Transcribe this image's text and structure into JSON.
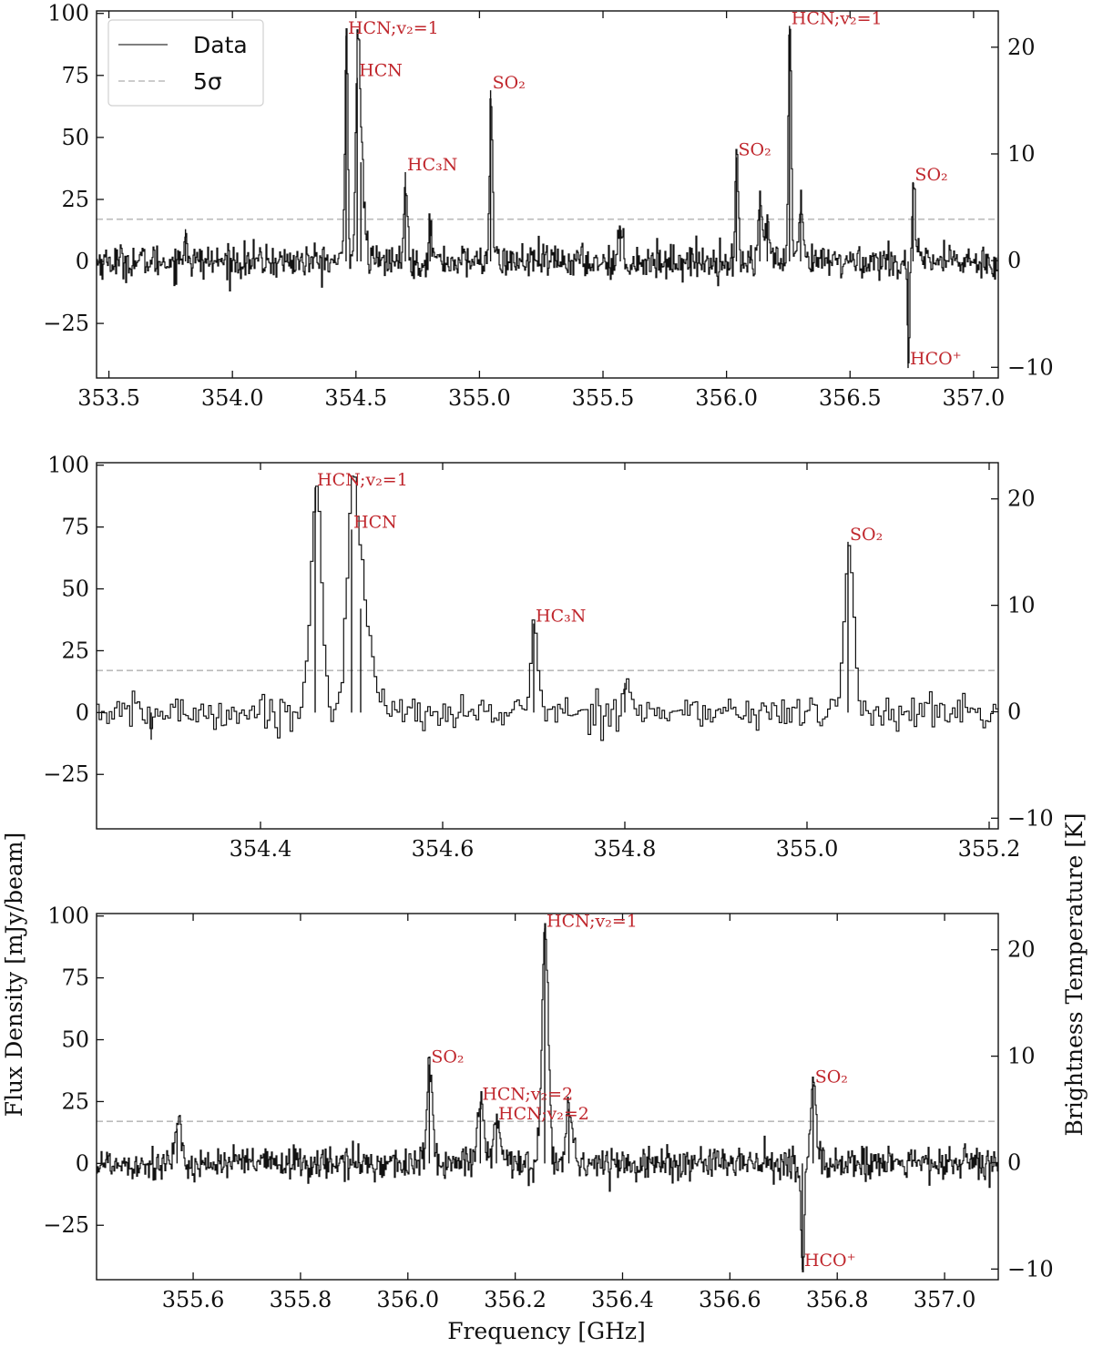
{
  "colors": {
    "data_line": "#111111",
    "threshold_line": "#bbbbbb",
    "annotation": "#c0272d",
    "axis": "#111111"
  },
  "legend": {
    "items": [
      {
        "label": "Data",
        "style": "solid",
        "color": "#555555"
      },
      {
        "label": "5σ",
        "style": "dashed",
        "color": "#bbbbbb"
      }
    ],
    "location": "upper-left of top panel"
  },
  "axes_text": {
    "xlabel": "Frequency [GHz]",
    "ylabel_left": "Flux Density [mJy/beam]",
    "ylabel_right": "Brightness Temperature [K]"
  },
  "chart_data": [
    {
      "type": "line",
      "panel": "top",
      "xlim": [
        353.45,
        357.1
      ],
      "ylim": [
        -47,
        101
      ],
      "ylim_right": [
        -11,
        23.4
      ],
      "xticks": [
        "353.5",
        "354.0",
        "354.5",
        "355.0",
        "355.5",
        "356.0",
        "356.5",
        "357.0"
      ],
      "yticks_left": [
        "100",
        "75",
        "50",
        "25",
        "0",
        "−25"
      ],
      "yticks_right": [
        "20",
        "10",
        "0",
        "−10"
      ],
      "threshold_5sigma": 17,
      "rms_noise": 3.4,
      "show_legend": true,
      "peaks": [
        {
          "x": 353.81,
          "y": 13,
          "w": 0.006
        },
        {
          "x": 354.46,
          "y": 91,
          "w": 0.006
        },
        {
          "x": 354.505,
          "y": 74,
          "w": 0.008
        },
        {
          "x": 354.52,
          "y": 40,
          "w": 0.012
        },
        {
          "x": 354.7,
          "y": 36,
          "w": 0.006
        },
        {
          "x": 354.8,
          "y": 13,
          "w": 0.008
        },
        {
          "x": 355.045,
          "y": 69,
          "w": 0.006
        },
        {
          "x": 355.57,
          "y": 14,
          "w": 0.008
        },
        {
          "x": 356.04,
          "y": 42,
          "w": 0.006
        },
        {
          "x": 356.135,
          "y": 26,
          "w": 0.008
        },
        {
          "x": 356.165,
          "y": 17,
          "w": 0.008
        },
        {
          "x": 356.255,
          "y": 95,
          "w": 0.006
        },
        {
          "x": 356.3,
          "y": 20,
          "w": 0.008
        },
        {
          "x": 356.735,
          "y": -43,
          "w": 0.004
        },
        {
          "x": 356.755,
          "y": 32,
          "w": 0.006
        }
      ],
      "annotations": [
        {
          "text": "HCN;v₂=1",
          "x": 354.46,
          "y": 91
        },
        {
          "text": "HCN",
          "x": 354.505,
          "y": 74
        },
        {
          "text": "HC₃N",
          "x": 354.7,
          "y": 36
        },
        {
          "text": "SO₂",
          "x": 355.045,
          "y": 69
        },
        {
          "text": "SO₂",
          "x": 356.04,
          "y": 42
        },
        {
          "text": "HCN;v₂=1",
          "x": 356.255,
          "y": 95
        },
        {
          "text": "SO₂",
          "x": 356.755,
          "y": 32
        },
        {
          "text": "HCO⁺",
          "x": 356.735,
          "y": -43
        }
      ]
    },
    {
      "type": "line",
      "panel": "middle",
      "xlim": [
        354.22,
        355.21
      ],
      "ylim": [
        -47,
        101
      ],
      "ylim_right": [
        -11,
        23.4
      ],
      "xticks": [
        "354.4",
        "354.6",
        "354.8",
        "355.0",
        "355.2"
      ],
      "yticks_left": [
        "100",
        "75",
        "50",
        "25",
        "0",
        "−25"
      ],
      "yticks_right": [
        "20",
        "10",
        "0",
        "−10"
      ],
      "threshold_5sigma": 17,
      "rms_noise": 3.4,
      "show_legend": false,
      "peaks": [
        {
          "x": 354.28,
          "y": -11,
          "w": 0.001
        },
        {
          "x": 354.46,
          "y": 91,
          "w": 0.006
        },
        {
          "x": 354.5,
          "y": 74,
          "w": 0.006
        },
        {
          "x": 354.51,
          "y": 42,
          "w": 0.01
        },
        {
          "x": 354.7,
          "y": 36,
          "w": 0.004
        },
        {
          "x": 354.8,
          "y": 12,
          "w": 0.006
        },
        {
          "x": 355.045,
          "y": 69,
          "w": 0.005
        }
      ],
      "annotations": [
        {
          "text": "HCN;v₂=1",
          "x": 354.46,
          "y": 91
        },
        {
          "text": "HCN",
          "x": 354.5,
          "y": 74
        },
        {
          "text": "HC₃N",
          "x": 354.7,
          "y": 36
        },
        {
          "text": "SO₂",
          "x": 355.045,
          "y": 69
        }
      ]
    },
    {
      "type": "line",
      "panel": "bottom",
      "xlim": [
        355.42,
        357.1
      ],
      "ylim": [
        -47,
        101
      ],
      "ylim_right": [
        -11,
        23.4
      ],
      "xticks": [
        "355.6",
        "355.8",
        "356.0",
        "356.2",
        "356.4",
        "356.6",
        "356.8",
        "357.0"
      ],
      "yticks_left": [
        "100",
        "75",
        "50",
        "25",
        "0",
        "−25"
      ],
      "yticks_right": [
        "20",
        "10",
        "0",
        "−10"
      ],
      "threshold_5sigma": 17,
      "rms_noise": 3.4,
      "show_legend": false,
      "peaks": [
        {
          "x": 355.57,
          "y": 14,
          "w": 0.006
        },
        {
          "x": 356.04,
          "y": 40,
          "w": 0.005
        },
        {
          "x": 356.135,
          "y": 25,
          "w": 0.006
        },
        {
          "x": 356.165,
          "y": 17,
          "w": 0.006
        },
        {
          "x": 356.255,
          "y": 95,
          "w": 0.006
        },
        {
          "x": 356.3,
          "y": 22,
          "w": 0.006
        },
        {
          "x": 356.735,
          "y": -43,
          "w": 0.003
        },
        {
          "x": 356.755,
          "y": 32,
          "w": 0.005
        }
      ],
      "annotations": [
        {
          "text": "SO₂",
          "x": 356.04,
          "y": 40
        },
        {
          "text": "HCN;v₂=2",
          "x": 356.135,
          "y": 25
        },
        {
          "text": "HCN;v₂=2",
          "x": 356.165,
          "y": 17
        },
        {
          "text": "HCN;v₂=1",
          "x": 356.255,
          "y": 95
        },
        {
          "text": "SO₂",
          "x": 356.755,
          "y": 32
        },
        {
          "text": "HCO⁺",
          "x": 356.735,
          "y": -43
        }
      ]
    }
  ]
}
